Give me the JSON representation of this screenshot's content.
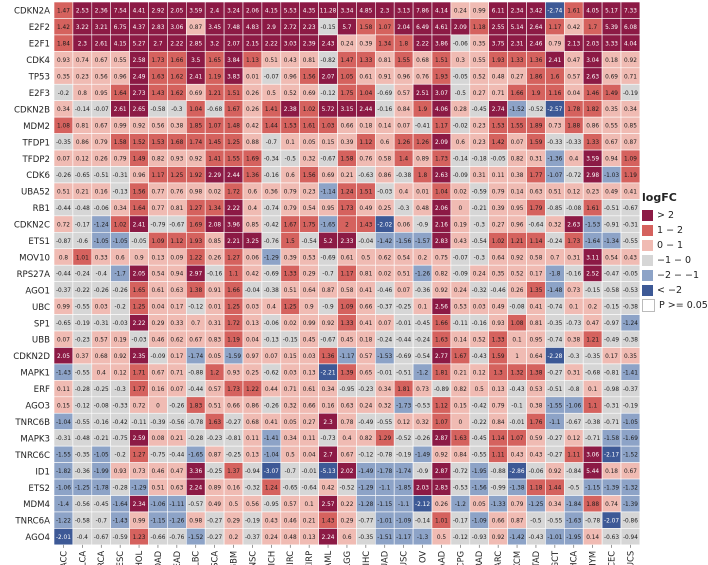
{
  "chart_data": {
    "type": "heatmap",
    "title": "",
    "xlabel": "",
    "ylabel": "",
    "columns": [
      "ACC",
      "BLCA",
      "BRCA",
      "CESC",
      "CHOL",
      "COAD",
      "READ",
      "DLBC",
      "ESCA",
      "GBM",
      "HNSC",
      "KICH",
      "KIRC",
      "KIRP",
      "LAML",
      "LGG",
      "LIHC",
      "LUAD",
      "LUSC",
      "OV",
      "PAAD",
      "PCPG",
      "PRAD",
      "SARC",
      "SKCM",
      "STAD",
      "TGCT",
      "THCA",
      "THYM",
      "UCEC",
      "UCS"
    ],
    "rows": [
      "CDKN2A",
      "E2F2",
      "E2F1",
      "CDK4",
      "TP53",
      "E2F3",
      "CDKN2B",
      "MDM2",
      "TFDP1",
      "TFDP2",
      "CDK6",
      "UBA52",
      "RB1",
      "CDKN2C",
      "ETS1",
      "MOV10",
      "RPS27A",
      "AGO1",
      "UBC",
      "SP1",
      "UBB",
      "CDKN2D",
      "MAPK1",
      "ERF",
      "AGO3",
      "TNRC6B",
      "MAPK3",
      "TNRC6C",
      "ID1",
      "ETS2",
      "MDM4",
      "TNRC6A",
      "AGO4"
    ],
    "values": [
      [
        1.47,
        2.53,
        2.36,
        7.54,
        4.41,
        2.92,
        2.05,
        3.59,
        2.4,
        3.24,
        2.06,
        4.15,
        5.53,
        4.35,
        11.28,
        3.34,
        4.85,
        2.3,
        3.13,
        7.86,
        4.14,
        0.24,
        0.99,
        6.11,
        2.34,
        3.42,
        -2.74,
        1.61,
        4.05,
        5.17,
        7.33
      ],
      [
        1.42,
        3.22,
        3.21,
        6.75,
        4.37,
        2.83,
        3.06,
        0.87,
        3.45,
        7.48,
        4.83,
        2.9,
        2.72,
        2.23,
        -0.15,
        5.7,
        1.58,
        1.07,
        2.04,
        6.49,
        4.61,
        2.09,
        1.18,
        2.55,
        5.14,
        2.64,
        1.17,
        0.42,
        1.7,
        5.39,
        6.08
      ],
      [
        1.84,
        2.3,
        2.61,
        4.15,
        5.27,
        2.7,
        2.22,
        2.85,
        3.2,
        2.07,
        2.15,
        2.22,
        3.03,
        2.39,
        2.43,
        0.24,
        0.39,
        1.34,
        1.8,
        2.22,
        3.86,
        -0.06,
        0.35,
        3.75,
        2.31,
        2.46,
        0.79,
        2.13,
        2.03,
        3.33,
        4.04
      ],
      [
        0.93,
        0.74,
        0.67,
        0.55,
        2.58,
        1.73,
        1.66,
        3.5,
        1.65,
        3.84,
        1.13,
        0.51,
        0.43,
        0.81,
        -0.82,
        1.47,
        1.33,
        0.81,
        1.55,
        0.68,
        1.51,
        0.3,
        0.55,
        1.93,
        1.33,
        1.36,
        2.41,
        0.47,
        3.04,
        0.18,
        0.92
      ],
      [
        0.35,
        0.23,
        0.56,
        0.96,
        2.49,
        1.63,
        1.62,
        2.41,
        1.19,
        3.83,
        0.01,
        -0.07,
        0.96,
        1.56,
        2.07,
        1.05,
        0.61,
        0.91,
        0.96,
        0.76,
        1.93,
        -0.05,
        0.52,
        0.48,
        0.27,
        1.86,
        1.6,
        0.57,
        2.63,
        0.69,
        0.71
      ],
      [
        -0.2,
        0.8,
        0.95,
        1.64,
        2.73,
        1.43,
        1.62,
        0.69,
        1.21,
        1.51,
        0.26,
        0.5,
        0.52,
        0.69,
        -0.12,
        1.75,
        1.04,
        -0.69,
        0.57,
        2.51,
        3.07,
        -0.5,
        0.27,
        0.71,
        1.66,
        1.9,
        1.16,
        0.04,
        1.46,
        1.49,
        -0.19
      ],
      [
        0.34,
        -0.14,
        -0.07,
        2.61,
        2.65,
        -0.58,
        -0.3,
        1.04,
        -0.68,
        1.67,
        0.26,
        1.41,
        2.38,
        1.02,
        5.72,
        3.15,
        2.44,
        -0.16,
        0.84,
        1.9,
        4.06,
        0.28,
        -0.45,
        2.74,
        -1.52,
        -0.52,
        -2.57,
        1.78,
        1.82,
        0.35,
        0.34
      ],
      [
        1.08,
        0.81,
        0.67,
        0.99,
        0.92,
        0.56,
        0.38,
        1.85,
        1.07,
        1.48,
        0.42,
        1.44,
        1.53,
        1.61,
        1.03,
        0.66,
        0.18,
        0.14,
        0.07,
        -0.41,
        1.17,
        -0.02,
        0.23,
        1.53,
        1.55,
        1.89,
        0.73,
        1.88,
        0.86,
        0.55,
        0.85
      ],
      [
        -0.35,
        0.86,
        0.79,
        1.58,
        1.52,
        1.53,
        1.68,
        1.74,
        1.45,
        1.25,
        0.88,
        -0.7,
        0.1,
        0.05,
        0.15,
        0.39,
        1.12,
        0.6,
        1.26,
        1.26,
        2.09,
        0.6,
        0.23,
        1.42,
        0.07,
        1.59,
        -0.33,
        -0.33,
        1.33,
        0.67,
        0.87
      ],
      [
        0.07,
        0.12,
        0.26,
        0.79,
        1.49,
        0.82,
        0.93,
        0.92,
        1.41,
        1.55,
        1.69,
        -0.34,
        -0.5,
        0.32,
        -0.67,
        1.58,
        0.76,
        0.58,
        1.4,
        0.89,
        1.73,
        -0.14,
        -0.18,
        -0.05,
        0.82,
        0.31,
        -1.36,
        0.4,
        3.59,
        0.94,
        1.09
      ],
      [
        -0.26,
        -0.65,
        -0.51,
        -0.31,
        0.96,
        1.17,
        1.25,
        1.92,
        2.29,
        2.44,
        1.36,
        -0.16,
        0.6,
        1.56,
        0.69,
        0.21,
        -0.63,
        0.86,
        -0.38,
        1.8,
        2.63,
        -0.09,
        0.31,
        0.11,
        0.38,
        1.77,
        -1.07,
        -0.72,
        2.98,
        -1.03,
        1.19
      ],
      [
        0.51,
        0.21,
        0.16,
        -0.13,
        1.56,
        0.77,
        0.76,
        0.98,
        0.02,
        1.72,
        0.6,
        0.36,
        0.79,
        0.23,
        -1.14,
        1.24,
        1.51,
        -0.03,
        0.4,
        0.01,
        1.04,
        0.02,
        -0.59,
        0.79,
        0.14,
        0.63,
        0.51,
        0.12,
        0.23,
        0.49,
        0.41
      ],
      [
        -0.44,
        -0.48,
        -0.06,
        0.34,
        1.64,
        0.77,
        0.81,
        1.27,
        1.34,
        2.22,
        0.4,
        -0.74,
        0.79,
        0.54,
        0.95,
        1.73,
        0.49,
        0.25,
        -0.3,
        0.48,
        2.06,
        0,
        -0.21,
        0.39,
        0.95,
        1.79,
        -0.85,
        -0.08,
        1.61,
        -0.51,
        -0.67
      ],
      [
        0.72,
        -0.17,
        -1.24,
        1.02,
        2.41,
        -0.79,
        -0.67,
        1.69,
        2.08,
        3.96,
        0.85,
        -0.42,
        1.67,
        1.75,
        -1.65,
        2,
        1.43,
        -2.02,
        0.06,
        -0.9,
        2.16,
        0.19,
        -0.3,
        0.27,
        0.96,
        -0.64,
        0.32,
        2.63,
        -1.53,
        -0.91,
        -0.31
      ],
      [
        -0.87,
        -0.6,
        -1.05,
        -1.05,
        -0.05,
        1.09,
        1.12,
        1.93,
        0.85,
        2.21,
        3.25,
        -0.76,
        1.5,
        -0.54,
        5.2,
        2.33,
        -0.04,
        -1.42,
        -1.56,
        -1.57,
        2.83,
        0.43,
        -0.54,
        1.02,
        1.21,
        1.14,
        -0.24,
        1.73,
        -1.64,
        -1.34,
        -0.55
      ],
      [
        0.8,
        1.01,
        0.33,
        0.6,
        0.9,
        0.13,
        0.09,
        1.22,
        0.26,
        1.27,
        0.06,
        -1.29,
        0.39,
        0.53,
        -0.69,
        0.61,
        0.5,
        0.62,
        0.54,
        0.2,
        0.75,
        -0.07,
        -0.3,
        0.64,
        0.92,
        0.58,
        0.7,
        0.31,
        3.11,
        0.54,
        0.43
      ],
      [
        -0.44,
        -0.24,
        -0.4,
        -1.7,
        2.05,
        0.54,
        0.94,
        2.97,
        -0.16,
        1.1,
        0.42,
        -0.69,
        1.33,
        0.29,
        -0.7,
        1.17,
        0.81,
        0.02,
        0.51,
        -1.26,
        0.82,
        -0.09,
        0.24,
        0.35,
        0.52,
        0.17,
        -1.8,
        -0.16,
        2.52,
        -0.47,
        -0.05
      ],
      [
        -0.37,
        -0.22,
        -0.26,
        -0.26,
        1.65,
        0.61,
        0.63,
        1.38,
        0.91,
        1.66,
        -0.04,
        -0.38,
        0.51,
        0.64,
        0.87,
        0.58,
        0.41,
        -0.46,
        0.07,
        -0.36,
        0.92,
        0.24,
        -0.32,
        -0.46,
        0.26,
        1.35,
        -1.48,
        0.73,
        -0.15,
        -0.58,
        -0.53
      ],
      [
        0.99,
        -0.55,
        0.03,
        -0.2,
        1.25,
        0.04,
        0.17,
        -0.12,
        0.01,
        1.25,
        0.03,
        0.4,
        1.25,
        0.9,
        -0.9,
        1.09,
        0.66,
        -0.37,
        -0.25,
        0.1,
        2.56,
        0.53,
        0.03,
        0.49,
        -0.08,
        0.41,
        -0.74,
        0.1,
        0.2,
        -0.15,
        -0.38
      ],
      [
        -0.65,
        -0.19,
        -0.31,
        -0.03,
        2.22,
        0.29,
        0.33,
        0.7,
        0.31,
        1.72,
        0.13,
        -0.06,
        0.02,
        0.99,
        0.92,
        1.33,
        0.41,
        0.07,
        -0.01,
        -0.45,
        1.66,
        -0.11,
        -0.16,
        0.93,
        1.08,
        0.81,
        -0.35,
        -0.73,
        0.47,
        -0.97,
        -1.24
      ],
      [
        0.07,
        -0.23,
        0.57,
        0.19,
        -0.03,
        0.46,
        0.62,
        0.67,
        0.83,
        1.19,
        0.04,
        -0.13,
        -0.15,
        0.45,
        -0.67,
        0.45,
        0.18,
        -0.24,
        -0.44,
        -0.24,
        1.63,
        0.14,
        0.52,
        1.33,
        0.1,
        0.95,
        -0.74,
        0.38,
        1.21,
        -0.49,
        -0.38
      ],
      [
        2.05,
        0.37,
        0.68,
        0.92,
        2.35,
        -0.09,
        0.17,
        -1.74,
        0.05,
        -1.59,
        0.97,
        0.07,
        0.15,
        0.03,
        1.36,
        -1.17,
        0.57,
        -1.53,
        -0.69,
        -0.54,
        2.77,
        1.67,
        -0.43,
        1.59,
        1,
        0.64,
        -2.28,
        -0.3,
        -0.35,
        0.17,
        0.35
      ],
      [
        -1.43,
        -0.55,
        0.4,
        0.12,
        1.71,
        0.67,
        0.71,
        -0.88,
        1.2,
        0.93,
        0.25,
        -0.62,
        0.03,
        0.13,
        -2.21,
        1.39,
        0.65,
        -0.01,
        -0.51,
        -1.2,
        1.81,
        0.21,
        0.12,
        1.3,
        1.32,
        1.38,
        -0.27,
        0.31,
        -0.68,
        -0.81,
        -1.41
      ],
      [
        0.11,
        -0.28,
        -0.25,
        -0.3,
        1.77,
        0.16,
        0.07,
        -0.44,
        0.57,
        1.73,
        1.22,
        0.44,
        0.71,
        0.61,
        0.34,
        -0.95,
        -0.23,
        0.34,
        1.81,
        0.73,
        -0.89,
        0.82,
        0.5,
        0.13,
        -0.43,
        0.53,
        -0.51,
        -0.8,
        0.1,
        -0.98,
        -0.37
      ],
      [
        0.15,
        -0.12,
        -0.08,
        -0.33,
        0.72,
        0,
        -0.26,
        1.83,
        0.51,
        0.66,
        0.86,
        -0.26,
        0.32,
        0.66,
        0.16,
        0.63,
        0.24,
        0.32,
        -1.73,
        -0.53,
        1.12,
        0.15,
        -0.42,
        0.79,
        -0.1,
        0.38,
        -1.55,
        -1.06,
        1.1,
        -0.31,
        -0.19
      ],
      [
        -1.04,
        -0.55,
        -0.16,
        -0.42,
        -0.11,
        -0.39,
        -0.56,
        -0.78,
        1.63,
        -0.27,
        0.68,
        0.41,
        0.05,
        0.27,
        2.3,
        0.78,
        -0.49,
        -0.55,
        0.12,
        0.32,
        1.07,
        0,
        -0.22,
        0.84,
        -0.01,
        1.76,
        -1.1,
        -0.67,
        -0.38,
        -0.71,
        -1.05
      ],
      [
        -0.31,
        -0.48,
        -0.21,
        -0.75,
        2.59,
        0.08,
        0.21,
        -0.28,
        -0.23,
        -0.81,
        0.11,
        -1.41,
        0.34,
        0.11,
        -0.73,
        0.4,
        0.82,
        1.29,
        -0.52,
        -0.26,
        2.87,
        1.63,
        -0.45,
        1.14,
        1.07,
        0.59,
        -0.27,
        0.12,
        -0.71,
        -1.58,
        -1.69
      ],
      [
        -1.55,
        -0.35,
        -1.05,
        -0.2,
        1.27,
        -0.75,
        -0.44,
        -1.65,
        0.87,
        -0.25,
        0.13,
        -1.04,
        0.5,
        0.04,
        2.7,
        0.67,
        -0.12,
        -0.78,
        -0.19,
        -1.49,
        0.92,
        0.84,
        -0.55,
        1.11,
        0.43,
        0.43,
        -0.27,
        1.11,
        3.06,
        -2.17,
        -1.52
      ],
      [
        -1.82,
        -0.36,
        -1.99,
        0.93,
        0.73,
        0.46,
        0.47,
        3.36,
        -0.25,
        1.37,
        -0.94,
        -3.07,
        -0.7,
        -0.01,
        -5.13,
        2.02,
        -1.49,
        -1.78,
        -1.74,
        -0.9,
        2.87,
        -0.72,
        -1.95,
        -0.88,
        -2.86,
        -0.06,
        0.92,
        -0.84,
        5.44,
        0.18,
        0.67
      ],
      [
        -1.06,
        -1.25,
        -1.78,
        -0.28,
        -1.29,
        0.51,
        0.63,
        2.24,
        0.89,
        0.16,
        -0.32,
        1.24,
        -0.65,
        -0.64,
        0.42,
        -0.52,
        -1.29,
        -1.1,
        -1.85,
        2.03,
        2.83,
        -0.53,
        -1.56,
        -0.99,
        -1.38,
        1.18,
        1.44,
        -0.5,
        -1.15,
        -1.39,
        -1.32
      ],
      [
        -1.4,
        -0.56,
        -0.45,
        -1.64,
        2.34,
        -1.06,
        -1.11,
        -0.57,
        0.49,
        0.5,
        0.56,
        -0.95,
        0.57,
        0.1,
        2.57,
        0.22,
        -1.28,
        -1.15,
        -1.1,
        -2.12,
        0.26,
        -1.2,
        0.05,
        -1.33,
        0.79,
        -1.25,
        0.34,
        -1.84,
        1.88,
        0.74,
        -1.39
      ],
      [
        -1.22,
        -0.58,
        -0.7,
        -1.43,
        0.99,
        -1.15,
        -1.26,
        0.98,
        -0.27,
        0.29,
        -0.19,
        0.43,
        0.46,
        0.21,
        1.43,
        0.29,
        -0.77,
        -1.01,
        -1.09,
        -0.14,
        1.01,
        -0.17,
        -1.09,
        0.66,
        0.87,
        -0.5,
        -0.55,
        -1.63,
        -0.78,
        -2.07,
        -0.86
      ],
      [
        -2.01,
        -0.4,
        -0.67,
        -0.59,
        1.23,
        -0.66,
        -0.76,
        -1.52,
        -0.27,
        0.2,
        -0.37,
        0.24,
        0.48,
        0.13,
        2.24,
        0.6,
        -0.35,
        -1.51,
        -1.17,
        -1.3,
        0.5,
        -0.12,
        -0.93,
        0.92,
        -1.42,
        -0.43,
        -1.01,
        -1.95,
        0.14,
        -0.63,
        -0.94
      ]
    ],
    "color_bins": [
      {
        "label": "> 2",
        "color": "#8c1a45"
      },
      {
        "label": "1 − 2",
        "color": "#d5625e"
      },
      {
        "label": "0 − 1",
        "color": "#f0bbb3"
      },
      {
        "label": "−1 − 0",
        "color": "#d6d6d6"
      },
      {
        "label": "−2 − −1",
        "color": "#8da3c7"
      },
      {
        "label": "< −2",
        "color": "#3d5996"
      },
      {
        "label": "P >= 0.05",
        "color": "#ffffff"
      }
    ],
    "legend_title": "logFC",
    "legend_position": "right",
    "grid": true
  }
}
